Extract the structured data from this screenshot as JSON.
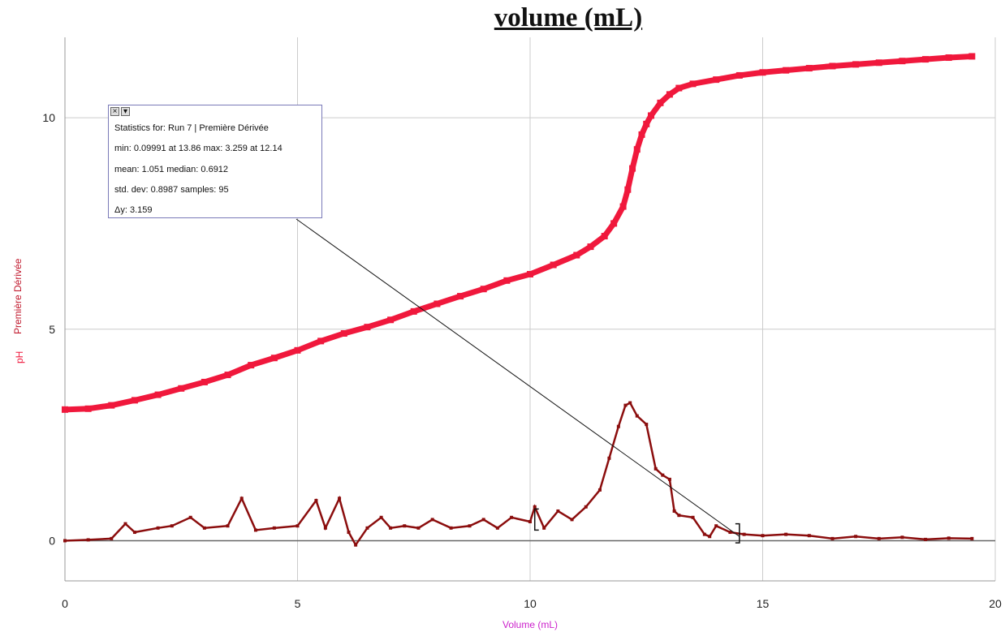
{
  "title": "volume (mL)",
  "colors": {
    "ph": "#f0183c",
    "derivative": "#8b0d0d",
    "grid": "#cccccc",
    "bracket": "#111111"
  },
  "stats_box": {
    "lines": [
      "Statistics for: Run 7 | Première Dérivée",
      "min: 0.09991 at 13.86 max: 3.259 at 12.14",
      "mean: 1.051 median: 0.6912",
      "std. dev: 0.8987 samples: 95",
      "Δy: 3.159"
    ],
    "close_icon": "close-icon",
    "menu_icon": "dropdown-icon"
  },
  "chart_data": {
    "type": "scatter",
    "xlabel": "Volume (mL)",
    "ylabels": [
      "pH",
      "Première Dérivée"
    ],
    "xlim": [
      0,
      20
    ],
    "ylim": [
      -0.95,
      11.9
    ],
    "x_ticks": [
      0,
      5,
      10,
      15,
      20
    ],
    "y_ticks": [
      0,
      5,
      10
    ],
    "grid": true,
    "selection_range": [
      10.1,
      14.5
    ],
    "annotation_anchor": [
      14.5,
      0.1
    ],
    "series": [
      {
        "name": "pH",
        "x": [
          0,
          0.5,
          1,
          1.5,
          2,
          2.5,
          3,
          3.5,
          4,
          4.5,
          5,
          5.5,
          6,
          6.5,
          7,
          7.5,
          8,
          8.5,
          9,
          9.5,
          10,
          10.5,
          11,
          11.3,
          11.6,
          11.8,
          12,
          12.1,
          12.2,
          12.3,
          12.4,
          12.5,
          12.6,
          12.8,
          13,
          13.2,
          13.5,
          14,
          14.5,
          15,
          15.5,
          16,
          16.5,
          17,
          17.5,
          18,
          18.5,
          19,
          19.5
        ],
        "y": [
          3.1,
          3.12,
          3.2,
          3.32,
          3.45,
          3.6,
          3.75,
          3.92,
          4.15,
          4.32,
          4.5,
          4.72,
          4.9,
          5.05,
          5.22,
          5.42,
          5.6,
          5.78,
          5.95,
          6.15,
          6.3,
          6.52,
          6.75,
          6.95,
          7.2,
          7.5,
          7.9,
          8.3,
          8.8,
          9.25,
          9.6,
          9.85,
          10.05,
          10.35,
          10.55,
          10.7,
          10.8,
          10.9,
          11.0,
          11.07,
          11.12,
          11.17,
          11.22,
          11.26,
          11.3,
          11.34,
          11.38,
          11.42,
          11.45
        ]
      },
      {
        "name": "Première Dérivée",
        "x": [
          0,
          0.5,
          1,
          1.3,
          1.5,
          2,
          2.3,
          2.7,
          3,
          3.5,
          3.8,
          4.1,
          4.5,
          5,
          5.4,
          5.6,
          5.9,
          6.1,
          6.25,
          6.5,
          6.8,
          7,
          7.3,
          7.6,
          7.9,
          8.3,
          8.7,
          9,
          9.3,
          9.6,
          10,
          10.1,
          10.3,
          10.6,
          10.9,
          11.2,
          11.5,
          11.7,
          11.9,
          12.05,
          12.15,
          12.3,
          12.5,
          12.7,
          12.85,
          13,
          13.1,
          13.2,
          13.5,
          13.75,
          13.86,
          14,
          14.3,
          14.6,
          15,
          15.5,
          16,
          16.5,
          17,
          17.5,
          18,
          18.5,
          19,
          19.5
        ],
        "y": [
          0,
          0.02,
          0.05,
          0.4,
          0.2,
          0.3,
          0.35,
          0.55,
          0.3,
          0.35,
          1.0,
          0.25,
          0.3,
          0.35,
          0.95,
          0.3,
          1.0,
          0.2,
          -0.1,
          0.3,
          0.55,
          0.3,
          0.35,
          0.3,
          0.5,
          0.3,
          0.35,
          0.5,
          0.3,
          0.55,
          0.45,
          0.8,
          0.3,
          0.7,
          0.5,
          0.8,
          1.2,
          1.95,
          2.7,
          3.2,
          3.259,
          2.95,
          2.75,
          1.7,
          1.55,
          1.45,
          0.7,
          0.6,
          0.55,
          0.15,
          0.1,
          0.35,
          0.2,
          0.15,
          0.12,
          0.15,
          0.12,
          0.05,
          0.1,
          0.05,
          0.08,
          0.03,
          0.06,
          0.05
        ]
      }
    ]
  }
}
